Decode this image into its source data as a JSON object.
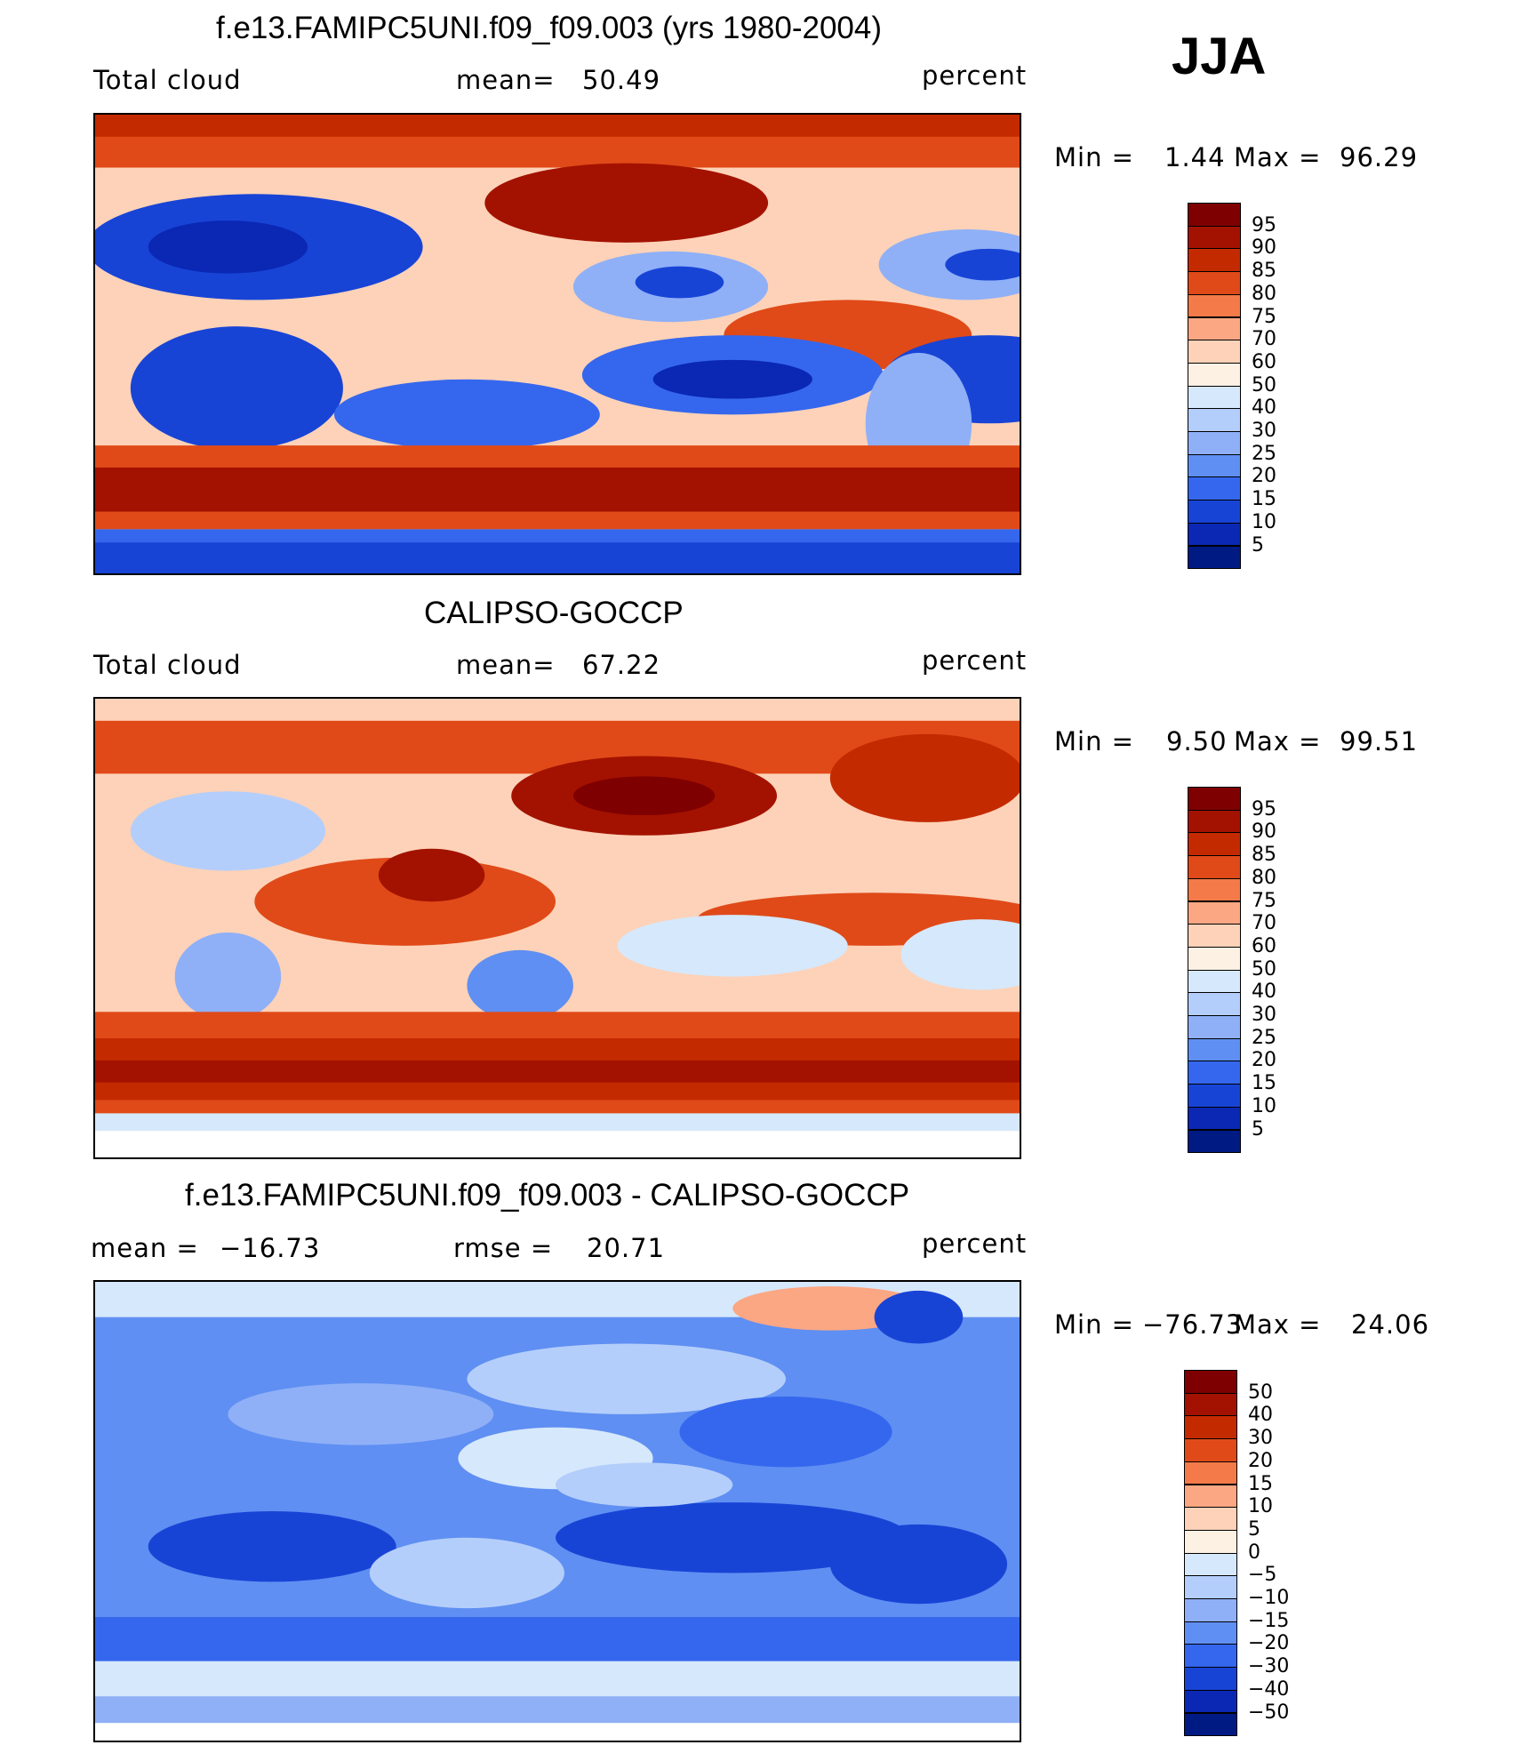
{
  "season": "JJA",
  "chart_data": [
    {
      "type": "heatmap",
      "title": "f.e13.FAMIPC5UNI.f09_f09.003 (yrs 1980-2004)",
      "variable": "Total cloud",
      "mean_label": "mean=",
      "mean": "50.49",
      "units": "percent",
      "min_label": "Min =",
      "min": "1.44",
      "max_label": "Max =",
      "max": "96.29",
      "colorbar": {
        "labels": [
          "95",
          "90",
          "85",
          "80",
          "75",
          "70",
          "60",
          "50",
          "40",
          "30",
          "25",
          "20",
          "15",
          "10",
          "5"
        ],
        "colors": [
          "#7f0000",
          "#a31200",
          "#c42a00",
          "#e04a18",
          "#f47a4a",
          "#fba783",
          "#fdd2b8",
          "#fdf1e4",
          "#d6e8fb",
          "#b4cefb",
          "#8fb0f7",
          "#5f8ff2",
          "#3567ee",
          "#1844d6",
          "#0a28b4",
          "#001a84"
        ]
      }
    },
    {
      "type": "heatmap",
      "title": "CALIPSO-GOCCP",
      "variable": "Total cloud",
      "mean_label": "mean=",
      "mean": "67.22",
      "units": "percent",
      "min_label": "Min =",
      "min": "9.50",
      "max_label": "Max =",
      "max": "99.51",
      "colorbar": {
        "labels": [
          "95",
          "90",
          "85",
          "80",
          "75",
          "70",
          "60",
          "50",
          "40",
          "30",
          "25",
          "20",
          "15",
          "10",
          "5"
        ],
        "colors": [
          "#7f0000",
          "#a31200",
          "#c42a00",
          "#e04a18",
          "#f47a4a",
          "#fba783",
          "#fdd2b8",
          "#fdf1e4",
          "#d6e8fb",
          "#b4cefb",
          "#8fb0f7",
          "#5f8ff2",
          "#3567ee",
          "#1844d6",
          "#0a28b4",
          "#001a84"
        ]
      }
    },
    {
      "type": "heatmap",
      "title": "f.e13.FAMIPC5UNI.f09_f09.003 - CALIPSO-GOCCP",
      "mean_label": "mean =",
      "mean": "−16.73",
      "rmse_label": "rmse =",
      "rmse": "20.71",
      "units": "percent",
      "min_label": "Min =",
      "min": "−76.73",
      "max_label": "Max =",
      "max": "24.06",
      "colorbar": {
        "labels": [
          "50",
          "40",
          "30",
          "20",
          "15",
          "10",
          "5",
          "0",
          "−5",
          "−10",
          "−15",
          "−20",
          "−30",
          "−40",
          "−50"
        ],
        "colors": [
          "#7f0000",
          "#a31200",
          "#c42a00",
          "#e04a18",
          "#f47a4a",
          "#fba783",
          "#fdd2b8",
          "#fdf1e4",
          "#d6e8fb",
          "#b4cefb",
          "#8fb0f7",
          "#5f8ff2",
          "#3567ee",
          "#1844d6",
          "#0a28b4",
          "#001a84"
        ]
      }
    }
  ]
}
